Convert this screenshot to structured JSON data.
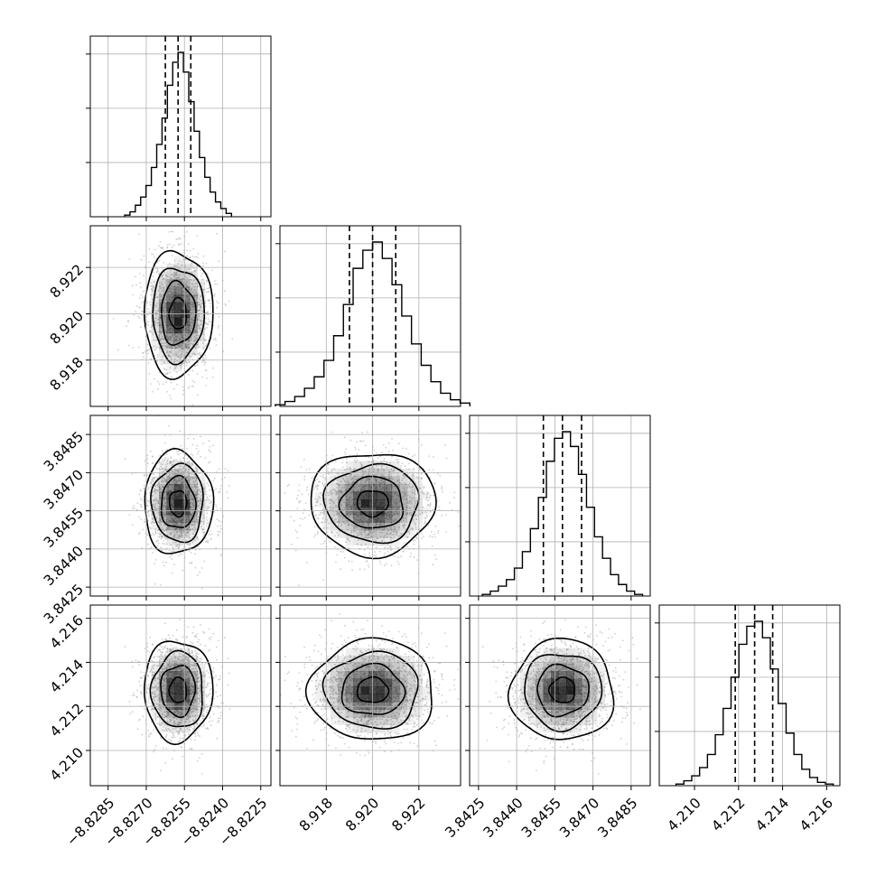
{
  "chart_data": {
    "type": "corner",
    "grid": true,
    "colors": {
      "frame": "#000000",
      "grid": "#b0b0b0",
      "scatter": "#a8a8a8",
      "density": "#000000",
      "contour": "#000000"
    },
    "parameters": [
      {
        "index": 0,
        "range": [
          -8.8292,
          -8.8221
        ],
        "ticks": [
          -8.8285,
          -8.827,
          -8.8255,
          -8.824,
          -8.8225
        ],
        "tick_labels": [
          "−8.8285",
          "−8.8270",
          "−8.8255",
          "−8.8240",
          "−8.8225"
        ],
        "quantiles": [
          -8.82625,
          -8.82575,
          -8.82525
        ]
      },
      {
        "index": 1,
        "range": [
          8.916,
          8.9238
        ],
        "ticks": [
          8.918,
          8.92,
          8.922
        ],
        "tick_labels": [
          "8.918",
          "8.920",
          "8.922"
        ],
        "quantiles": [
          8.919,
          8.92,
          8.921
        ]
      },
      {
        "index": 2,
        "range": [
          3.84215,
          3.84925
        ],
        "ticks": [
          3.8425,
          3.844,
          3.8455,
          3.847,
          3.8485
        ],
        "tick_labels": [
          "3.8425",
          "3.8440",
          "3.8455",
          "3.8470",
          "3.8485"
        ],
        "quantiles": [
          3.84505,
          3.8458,
          3.84655
        ]
      },
      {
        "index": 3,
        "range": [
          4.2084,
          4.2166
        ],
        "ticks": [
          4.21,
          4.212,
          4.214,
          4.216
        ],
        "tick_labels": [
          "4.210",
          "4.212",
          "4.214",
          "4.216"
        ],
        "quantiles": [
          4.21185,
          4.21273,
          4.21355
        ]
      }
    ],
    "marginals": [
      {
        "param": 0,
        "counts": [
          1,
          3,
          7,
          12,
          19,
          30,
          44,
          60,
          80,
          94,
          100,
          88,
          70,
          52,
          36,
          24,
          15,
          9,
          5,
          2
        ]
      },
      {
        "param": 1,
        "counts": [
          1,
          3,
          6,
          11,
          18,
          28,
          43,
          62,
          84,
          95,
          100,
          90,
          74,
          55,
          38,
          25,
          15,
          8,
          4,
          2
        ]
      },
      {
        "param": 2,
        "counts": [
          1,
          3,
          6,
          10,
          17,
          27,
          41,
          60,
          82,
          96,
          100,
          91,
          74,
          54,
          36,
          23,
          13,
          7,
          3,
          1
        ]
      },
      {
        "param": 3,
        "counts": [
          1,
          3,
          6,
          11,
          19,
          31,
          47,
          66,
          86,
          97,
          100,
          90,
          71,
          50,
          32,
          19,
          10,
          5,
          2,
          1
        ]
      }
    ],
    "joint": [
      {
        "x_param": 0,
        "y_param": 1
      },
      {
        "x_param": 0,
        "y_param": 2
      },
      {
        "x_param": 1,
        "y_param": 2
      },
      {
        "x_param": 0,
        "y_param": 3
      },
      {
        "x_param": 1,
        "y_param": 3
      },
      {
        "x_param": 2,
        "y_param": 3
      }
    ]
  }
}
